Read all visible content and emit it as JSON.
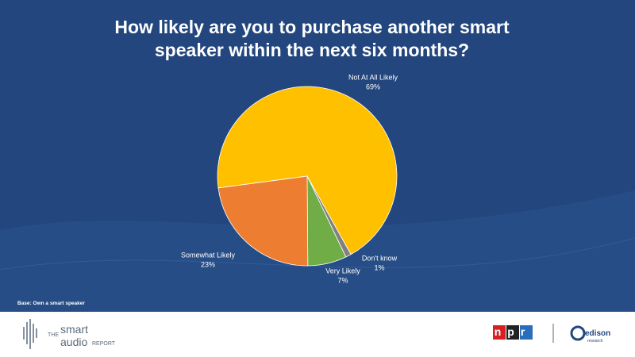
{
  "chart_data": {
    "type": "pie",
    "title": "How likely are you to purchase another smart speaker within the next six months?",
    "categories": [
      "Not At All Likely",
      "Don't know",
      "Very Likely",
      "Somewhat Likely"
    ],
    "values": [
      69,
      1,
      7,
      23
    ],
    "value_labels": [
      "69%",
      "1%",
      "7%",
      "23%"
    ],
    "colors": [
      "#FFC000",
      "#808080",
      "#70AD47",
      "#ED7D31"
    ],
    "note": "Base: Own a smart speaker"
  },
  "footer": {
    "brand_the": "THE",
    "brand_smart": "smart",
    "brand_audio": "audio",
    "brand_report": "REPORT",
    "npr": "npr",
    "edison": "edison",
    "edison_sub": "research"
  }
}
